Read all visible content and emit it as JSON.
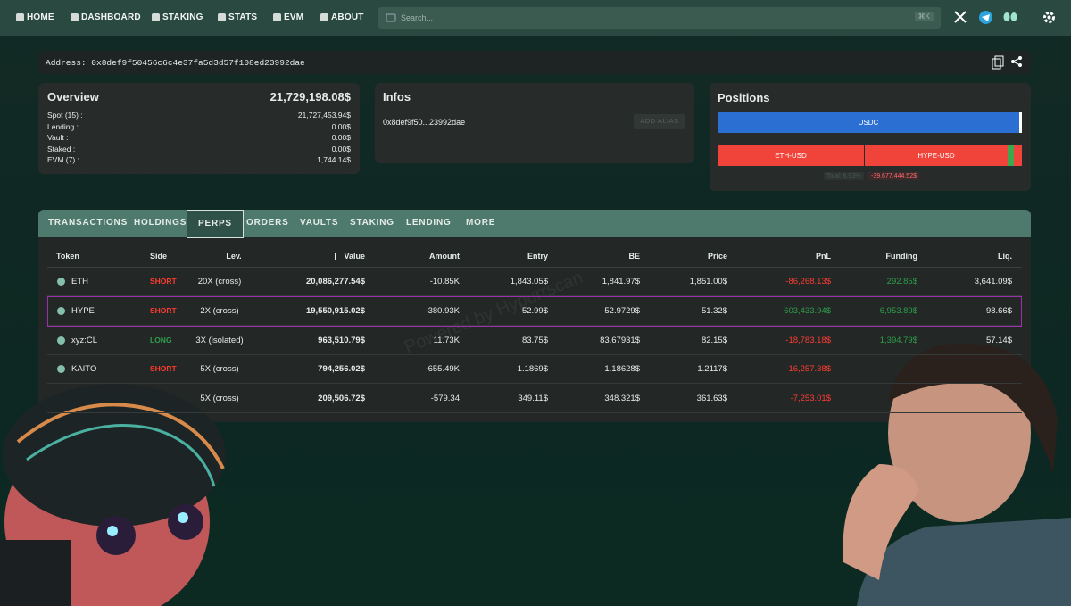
{
  "nav": {
    "items": [
      "HOME",
      "DASHBOARD",
      "STAKING",
      "STATS",
      "EVM",
      "ABOUT"
    ],
    "search_placeholder": "Search...",
    "search_shortcut": "⌘K"
  },
  "address_bar": {
    "text": "Address: 0x8def9f50456c6c4e37fa5d3d57f108ed23992dae"
  },
  "overview": {
    "title": "Overview",
    "total": "21,729,198.08$",
    "items": [
      {
        "label": "Spot (15) :",
        "value": "21,727,453.94$"
      },
      {
        "label": "Lending :",
        "value": "0.00$"
      },
      {
        "label": "Vault :",
        "value": "0.00$"
      },
      {
        "label": "Staked :",
        "value": "0.00$"
      },
      {
        "label": "EVM (7) :",
        "value": "1,744.14$"
      }
    ]
  },
  "infos": {
    "title": "Infos",
    "address": "0x8def9f50...23992dae",
    "button": "ADD ALIAS"
  },
  "positions": {
    "title": "Positions",
    "spot_bar": "USDC",
    "perp_bars": [
      "ETH-USD",
      "HYPE-USD"
    ],
    "total_label": "Total: 6.93%",
    "total_pnl": "-39,677,444.52$"
  },
  "tabs": {
    "items": [
      "TRANSACTIONS",
      "HOLDINGS",
      "PERPS",
      "ORDERS",
      "VAULTS",
      "STAKING",
      "LENDING",
      "MORE"
    ],
    "active": 2
  },
  "table": {
    "headers": [
      "Token",
      "Side",
      "Lev.",
      "Value",
      "Amount",
      "Entry",
      "BE",
      "Price",
      "PnL",
      "Funding",
      "Liq."
    ],
    "highlight_row": 1,
    "rows": [
      {
        "token": "ETH",
        "side": "SHORT",
        "side_color": "#ff3b30",
        "lev": "20X (cross)",
        "value": "20,086,277.54$",
        "amount": "-10.85K",
        "entry": "1,843.05$",
        "be": "1,841.97$",
        "price": "1,851.00$",
        "pnl": "-86,268.13$",
        "pnl_color": "#ff3b30",
        "funding": "292.85$",
        "funding_color": "#2e9e4a",
        "liq": "3,641.09$"
      },
      {
        "token": "HYPE",
        "side": "SHORT",
        "side_color": "#ff3b30",
        "lev": "2X (cross)",
        "value": "19,550,915.02$",
        "amount": "-380.93K",
        "entry": "52.99$",
        "be": "52.9729$",
        "price": "51.32$",
        "pnl": "603,433.94$",
        "pnl_color": "#2e9e4a",
        "funding": "6,953.89$",
        "funding_color": "#2e9e4a",
        "liq": "98.66$"
      },
      {
        "token": "xyz:CL",
        "side": "LONG",
        "side_color": "#2e9e4a",
        "lev": "3X (isolated)",
        "value": "963,510.79$",
        "amount": "11.73K",
        "entry": "83.75$",
        "be": "83.67931$",
        "price": "82.15$",
        "pnl": "-18,783.18$",
        "pnl_color": "#ff3b30",
        "funding": "1,394.79$",
        "funding_color": "#2e9e4a",
        "liq": "57.14$"
      },
      {
        "token": "KAITO",
        "side": "SHORT",
        "side_color": "#ff3b30",
        "lev": "5X (cross)",
        "value": "794,256.02$",
        "amount": "-655.49K",
        "entry": "1.1869$",
        "be": "1.18628$",
        "price": "1.2117$",
        "pnl": "-16,257.38$",
        "pnl_color": "#ff3b30"
      },
      {
        "lev": "5X (cross)",
        "value": "209,506.72$",
        "amount": "-579.34",
        "entry": "349.11$",
        "be": "348.321$",
        "price": "361.63$",
        "pnl": "-7,253.01$",
        "pnl_color": "#ff3b30"
      }
    ]
  },
  "watermark": "Powered by Hypurrscan"
}
